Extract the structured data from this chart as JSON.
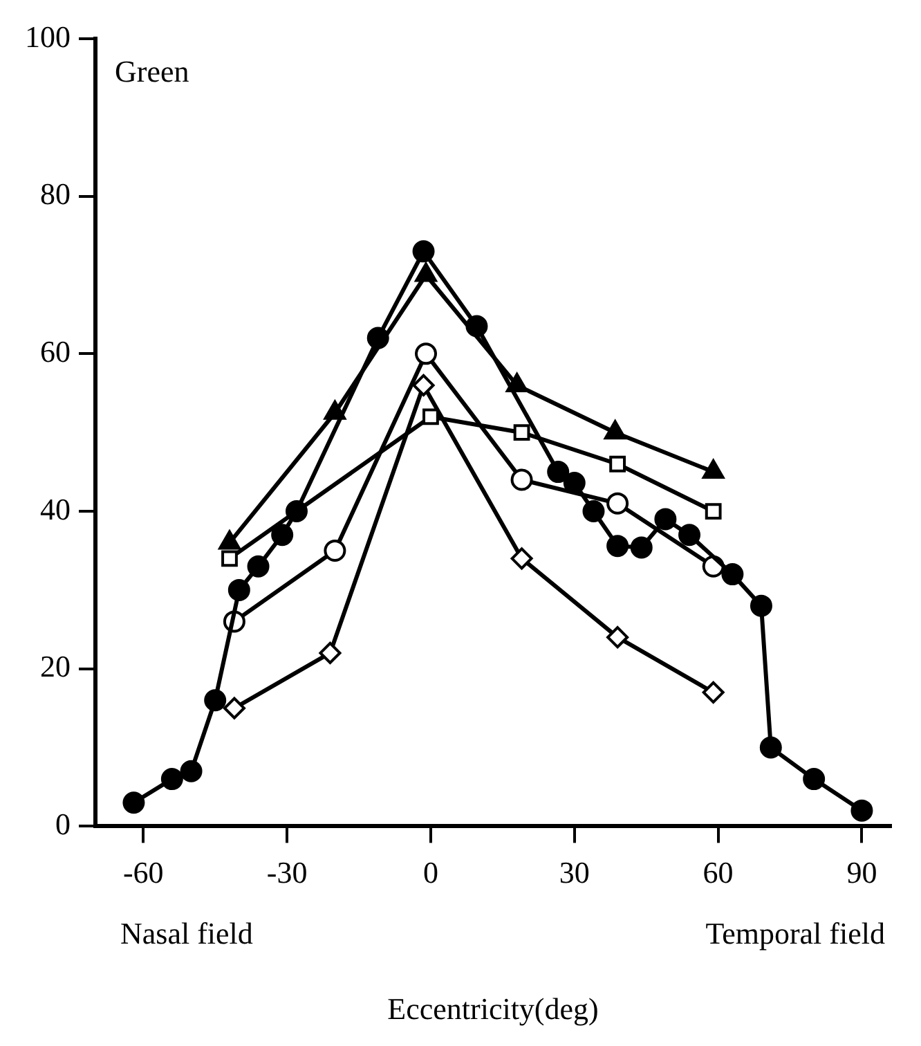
{
  "chart_data": {
    "type": "line",
    "xlabel": "Eccentricity(deg)",
    "annotations": [
      "Green",
      "Nasal field",
      "Temporal field"
    ],
    "xlim": [
      -70,
      96
    ],
    "ylim": [
      0,
      100
    ],
    "xticks": [
      -60,
      -30,
      0,
      30,
      60,
      90
    ],
    "yticks": [
      0,
      20,
      40,
      60,
      80,
      100
    ],
    "grid": false,
    "legend": false,
    "series": [
      {
        "color": "#000000",
        "marker": "circle",
        "x": [
          -62,
          -54,
          -50,
          -45,
          -40,
          -36,
          -31,
          -28,
          -11,
          -1.5,
          9.6,
          26.6,
          30,
          34,
          39,
          44,
          49,
          54,
          63,
          69,
          71,
          80,
          90
        ],
        "values": [
          3,
          6,
          7,
          16,
          30,
          33,
          37,
          40,
          62,
          73,
          63.5,
          45,
          43.6,
          40,
          35.6,
          35.4,
          39,
          37,
          32,
          28,
          10,
          6,
          2
        ]
      },
      {
        "color": "#000000",
        "marker": "triangle",
        "x": [
          -42,
          -20,
          -1,
          18,
          38.5,
          59
        ],
        "values": [
          36,
          52.5,
          70,
          56,
          50,
          45
        ]
      },
      {
        "color": "#000000",
        "marker": "square",
        "x": [
          -42,
          -20,
          0,
          19,
          39,
          59
        ],
        "values": [
          34,
          null,
          52,
          50,
          46,
          40
        ]
      },
      {
        "color": "#000000",
        "marker": "circle_open",
        "x": [
          -41,
          -20,
          -1,
          19,
          39,
          59
        ],
        "values": [
          26,
          35,
          60,
          44,
          41,
          33
        ]
      },
      {
        "color": "#000000",
        "marker": "diamond",
        "x": [
          -41,
          -21,
          -1.5,
          19,
          39,
          59
        ],
        "values": [
          15,
          22,
          56,
          34,
          24,
          17
        ]
      }
    ]
  }
}
